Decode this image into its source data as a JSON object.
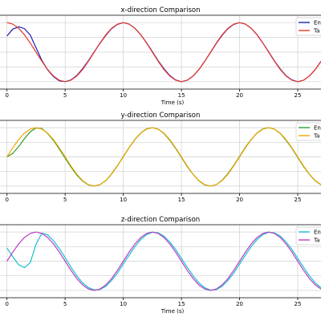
{
  "chart_data": [
    {
      "type": "line",
      "title": "x-direction Comparison",
      "xlabel": "Time (s)",
      "ylabel": "",
      "xlim": [
        -0.6,
        27
      ],
      "ylim": [
        -1.25,
        1.25
      ],
      "x_ticks": [
        0,
        5,
        10,
        15,
        20,
        25
      ],
      "grid": true,
      "legend": "top-right",
      "series": [
        {
          "name": "En",
          "color": "#1f1fbf",
          "x": [
            0,
            0.5,
            1.0,
            1.5,
            2.0,
            2.5,
            3.0,
            3.5,
            4.0,
            4.5,
            5.0,
            5.5,
            6.0,
            6.5,
            7.0,
            7.5,
            8.0,
            8.5,
            9.0,
            9.5,
            10.0,
            10.5,
            11.0,
            11.5,
            12.0,
            12.5,
            13.0,
            13.5,
            14.0,
            14.5,
            15.0,
            15.5,
            16.0,
            16.5,
            17.0,
            17.5,
            18.0,
            18.5,
            19.0,
            19.5,
            20.0,
            20.5,
            21.0,
            21.5,
            22.0,
            22.5,
            23.0,
            23.5,
            24.0,
            24.5,
            25.0,
            25.5,
            26.0,
            26.5,
            27.0
          ],
          "y": [
            0.55,
            0.78,
            0.86,
            0.8,
            0.58,
            0.15,
            -0.28,
            -0.6,
            -0.83,
            -0.97,
            -1.0,
            -0.94,
            -0.79,
            -0.56,
            -0.29,
            0.01,
            0.3,
            0.57,
            0.8,
            0.94,
            1.0,
            0.95,
            0.81,
            0.59,
            0.32,
            0.02,
            -0.29,
            -0.56,
            -0.79,
            -0.94,
            -1.0,
            -0.95,
            -0.81,
            -0.59,
            -0.31,
            -0.01,
            0.3,
            0.57,
            0.8,
            0.94,
            1.0,
            0.95,
            0.81,
            0.59,
            0.31,
            0.01,
            -0.3,
            -0.57,
            -0.8,
            -0.94,
            -1.0,
            -0.95,
            -0.81,
            -0.59,
            -0.31
          ]
        },
        {
          "name": "Ta",
          "color": "#e8392a",
          "x": [
            0,
            0.5,
            1.0,
            1.5,
            2.0,
            2.5,
            3.0,
            3.5,
            4.0,
            4.5,
            5.0,
            5.5,
            6.0,
            6.5,
            7.0,
            7.5,
            8.0,
            8.5,
            9.0,
            9.5,
            10.0,
            10.5,
            11.0,
            11.5,
            12.0,
            12.5,
            13.0,
            13.5,
            14.0,
            14.5,
            15.0,
            15.5,
            16.0,
            16.5,
            17.0,
            17.5,
            18.0,
            18.5,
            19.0,
            19.5,
            20.0,
            20.5,
            21.0,
            21.5,
            22.0,
            22.5,
            23.0,
            23.5,
            24.0,
            24.5,
            25.0,
            25.5,
            26.0,
            26.5,
            27.0
          ],
          "y": [
            1.0,
            0.95,
            0.81,
            0.59,
            0.31,
            0.0,
            -0.31,
            -0.59,
            -0.81,
            -0.95,
            -1.0,
            -0.95,
            -0.81,
            -0.59,
            -0.31,
            0.0,
            0.31,
            0.59,
            0.81,
            0.95,
            1.0,
            0.95,
            0.81,
            0.59,
            0.31,
            0.0,
            -0.31,
            -0.59,
            -0.81,
            -0.95,
            -1.0,
            -0.95,
            -0.81,
            -0.59,
            -0.31,
            0.0,
            0.31,
            0.59,
            0.81,
            0.95,
            1.0,
            0.95,
            0.81,
            0.59,
            0.31,
            0.0,
            -0.31,
            -0.59,
            -0.81,
            -0.95,
            -1.0,
            -0.95,
            -0.81,
            -0.59,
            -0.31
          ]
        }
      ]
    },
    {
      "type": "line",
      "title": "y-direction Comparison",
      "xlabel": "",
      "ylabel": "",
      "xlim": [
        -0.6,
        27
      ],
      "ylim": [
        -1.25,
        1.25
      ],
      "x_ticks": [
        0,
        5,
        10,
        15,
        20,
        25
      ],
      "grid": true,
      "legend": "top-right",
      "series": [
        {
          "name": "En",
          "color": "#2ca02c",
          "x": [
            0,
            0.5,
            1.0,
            1.5,
            2.0,
            2.5,
            3.0,
            3.5,
            4.0,
            4.5,
            5.0,
            5.5,
            6.0,
            6.5,
            7.0,
            7.5,
            8.0,
            8.5,
            9.0,
            9.5,
            10.0,
            10.5,
            11.0,
            11.5,
            12.0,
            12.5,
            13.0,
            13.5,
            14.0,
            14.5,
            15.0,
            15.5,
            16.0,
            16.5,
            17.0,
            17.5,
            18.0,
            18.5,
            19.0,
            19.5,
            20.0,
            20.5,
            21.0,
            21.5,
            22.0,
            22.5,
            23.0,
            23.5,
            24.0,
            24.5,
            25.0,
            25.5,
            26.0,
            26.5,
            27.0
          ],
          "y": [
            0.0,
            0.12,
            0.35,
            0.62,
            0.86,
            0.99,
            0.97,
            0.8,
            0.56,
            0.27,
            -0.04,
            -0.35,
            -0.62,
            -0.83,
            -0.96,
            -1.0,
            -0.95,
            -0.81,
            -0.58,
            -0.3,
            0.01,
            0.32,
            0.6,
            0.82,
            0.96,
            1.0,
            0.95,
            0.8,
            0.57,
            0.29,
            -0.02,
            -0.33,
            -0.6,
            -0.82,
            -0.96,
            -1.0,
            -0.95,
            -0.8,
            -0.57,
            -0.29,
            0.02,
            0.33,
            0.6,
            0.82,
            0.96,
            1.0,
            0.95,
            0.8,
            0.57,
            0.29,
            -0.02,
            -0.33,
            -0.6,
            -0.82,
            -0.96
          ]
        },
        {
          "name": "Ta",
          "color": "#f0a500",
          "x": [
            0,
            0.5,
            1.0,
            1.5,
            2.0,
            2.5,
            3.0,
            3.5,
            4.0,
            4.5,
            5.0,
            5.5,
            6.0,
            6.5,
            7.0,
            7.5,
            8.0,
            8.5,
            9.0,
            9.5,
            10.0,
            10.5,
            11.0,
            11.5,
            12.0,
            12.5,
            13.0,
            13.5,
            14.0,
            14.5,
            15.0,
            15.5,
            16.0,
            16.5,
            17.0,
            17.5,
            18.0,
            18.5,
            19.0,
            19.5,
            20.0,
            20.5,
            21.0,
            21.5,
            22.0,
            22.5,
            23.0,
            23.5,
            24.0,
            24.5,
            25.0,
            25.5,
            26.0,
            26.5,
            27.0
          ],
          "y": [
            0.0,
            0.31,
            0.59,
            0.81,
            0.95,
            1.0,
            0.95,
            0.81,
            0.59,
            0.31,
            0.0,
            -0.31,
            -0.59,
            -0.81,
            -0.95,
            -1.0,
            -0.95,
            -0.81,
            -0.59,
            -0.31,
            0.0,
            0.31,
            0.59,
            0.81,
            0.95,
            1.0,
            0.95,
            0.81,
            0.59,
            0.31,
            0.0,
            -0.31,
            -0.59,
            -0.81,
            -0.95,
            -1.0,
            -0.95,
            -0.81,
            -0.59,
            -0.31,
            0.0,
            0.31,
            0.59,
            0.81,
            0.95,
            1.0,
            0.95,
            0.81,
            0.59,
            0.31,
            0.0,
            -0.31,
            -0.59,
            -0.81,
            -0.95
          ]
        }
      ]
    },
    {
      "type": "line",
      "title": "z-direction Comparison",
      "xlabel": "Time (s)",
      "ylabel": "",
      "xlim": [
        -0.6,
        27
      ],
      "ylim": [
        -1.25,
        1.25
      ],
      "x_ticks": [
        0,
        5,
        10,
        15,
        20,
        25
      ],
      "grid": true,
      "legend": "top-right",
      "series": [
        {
          "name": "En",
          "color": "#17becf",
          "x": [
            0,
            0.5,
            1.0,
            1.5,
            2.0,
            2.5,
            3.0,
            3.5,
            4.0,
            4.5,
            5.0,
            5.5,
            6.0,
            6.5,
            7.0,
            7.5,
            8.0,
            8.5,
            9.0,
            9.5,
            10.0,
            10.5,
            11.0,
            11.5,
            12.0,
            12.5,
            13.0,
            13.5,
            14.0,
            14.5,
            15.0,
            15.5,
            16.0,
            16.5,
            17.0,
            17.5,
            18.0,
            18.5,
            19.0,
            19.5,
            20.0,
            20.5,
            21.0,
            21.5,
            22.0,
            22.5,
            23.0,
            23.5,
            24.0,
            24.5,
            25.0,
            25.5,
            26.0,
            26.5,
            27.0
          ],
          "y": [
            0.45,
            0.15,
            -0.12,
            -0.22,
            -0.05,
            0.58,
            0.96,
            0.9,
            0.7,
            0.43,
            0.12,
            -0.2,
            -0.5,
            -0.74,
            -0.9,
            -0.98,
            -0.97,
            -0.86,
            -0.66,
            -0.4,
            -0.1,
            0.21,
            0.5,
            0.74,
            0.91,
            0.99,
            0.97,
            0.86,
            0.66,
            0.4,
            0.1,
            -0.21,
            -0.5,
            -0.74,
            -0.91,
            -0.99,
            -0.97,
            -0.86,
            -0.66,
            -0.4,
            -0.1,
            0.21,
            0.5,
            0.74,
            0.91,
            0.99,
            0.97,
            0.86,
            0.66,
            0.4,
            0.1,
            -0.21,
            -0.5,
            -0.74,
            -0.91
          ]
        },
        {
          "name": "Ta",
          "color": "#b83ec7",
          "x": [
            0,
            0.5,
            1.0,
            1.5,
            2.0,
            2.5,
            3.0,
            3.5,
            4.0,
            4.5,
            5.0,
            5.5,
            6.0,
            6.5,
            7.0,
            7.5,
            8.0,
            8.5,
            9.0,
            9.5,
            10.0,
            10.5,
            11.0,
            11.5,
            12.0,
            12.5,
            13.0,
            13.5,
            14.0,
            14.5,
            15.0,
            15.5,
            16.0,
            16.5,
            17.0,
            17.5,
            18.0,
            18.5,
            19.0,
            19.5,
            20.0,
            20.5,
            21.0,
            21.5,
            22.0,
            22.5,
            23.0,
            23.5,
            24.0,
            24.5,
            25.0,
            25.5,
            26.0,
            26.5,
            27.0
          ],
          "y": [
            0.0,
            0.31,
            0.59,
            0.81,
            0.95,
            1.0,
            0.95,
            0.81,
            0.59,
            0.31,
            0.0,
            -0.31,
            -0.59,
            -0.81,
            -0.95,
            -1.0,
            -0.95,
            -0.81,
            -0.59,
            -0.31,
            0.0,
            0.31,
            0.59,
            0.81,
            0.95,
            1.0,
            0.95,
            0.81,
            0.59,
            0.31,
            0.0,
            -0.31,
            -0.59,
            -0.81,
            -0.95,
            -1.0,
            -0.95,
            -0.81,
            -0.59,
            -0.31,
            0.0,
            0.31,
            0.59,
            0.81,
            0.95,
            1.0,
            0.95,
            0.81,
            0.59,
            0.31,
            0.0,
            -0.31,
            -0.59,
            -0.81,
            -0.95
          ]
        }
      ]
    }
  ]
}
